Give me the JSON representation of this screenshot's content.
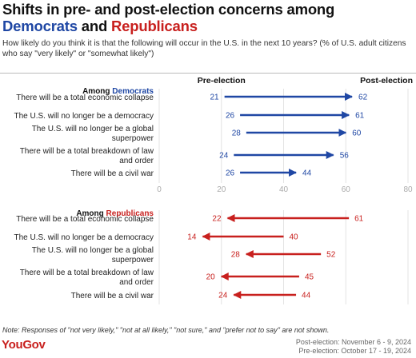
{
  "title": {
    "line1": "Shifts in pre- and post-election concerns among",
    "democrats": "Democrats",
    "and": " and ",
    "republicans": "Republicans"
  },
  "subtitle": "How likely do you think it is that the following will occur in the U.S. in the next 10 years? (% of U.S. adult citizens who say \"very likely\" or \"somewhat likely\")",
  "note": "Note: Responses of \"not very likely,\" \"not at all likely,\" \"not sure,\" and \"prefer not to say\" are not shown.",
  "logo": "YouGov",
  "dates": {
    "post": "Post-election: November 6 - 9, 2024",
    "pre": "Pre-election: October 17 - 19, 2024"
  },
  "colors": {
    "democrats": "#1f47a4",
    "republicans": "#c8201e",
    "grid": "#e3e3e3",
    "tick": "#aaaaaa"
  },
  "chart_data": {
    "type": "dumbbell-arrow",
    "column_headers": {
      "pre": "Pre-election",
      "post": "Post-election"
    },
    "xlim": [
      0,
      80
    ],
    "xticks": [
      0,
      20,
      40,
      60,
      80
    ],
    "grid": true,
    "panels": [
      {
        "label_prefix": "Among ",
        "group": "Democrats",
        "color_key": "democrats",
        "rows": [
          {
            "label": [
              "There will be a total economic collapse"
            ],
            "pre": 21,
            "post": 62
          },
          {
            "label": [
              "The U.S. will no longer be a democracy"
            ],
            "pre": 26,
            "post": 61
          },
          {
            "label": [
              "The U.S. will no longer be a global",
              "superpower"
            ],
            "pre": 28,
            "post": 60
          },
          {
            "label": [
              "There will be a total breakdown of law",
              "and order"
            ],
            "pre": 24,
            "post": 56
          },
          {
            "label": [
              "There will be a civil war"
            ],
            "pre": 26,
            "post": 44
          }
        ]
      },
      {
        "label_prefix": "Among ",
        "group": "Republicans",
        "color_key": "republicans",
        "rows": [
          {
            "label": [
              "There will be a total economic collapse"
            ],
            "pre": 61,
            "post": 22
          },
          {
            "label": [
              "The U.S. will no longer be a democracy"
            ],
            "pre": 40,
            "post": 14
          },
          {
            "label": [
              "The U.S. will no longer be a global",
              "superpower"
            ],
            "pre": 52,
            "post": 28
          },
          {
            "label": [
              "There will be a total breakdown of law",
              "and order"
            ],
            "pre": 45,
            "post": 20
          },
          {
            "label": [
              "There will be a civil war"
            ],
            "pre": 44,
            "post": 24
          }
        ]
      }
    ]
  }
}
